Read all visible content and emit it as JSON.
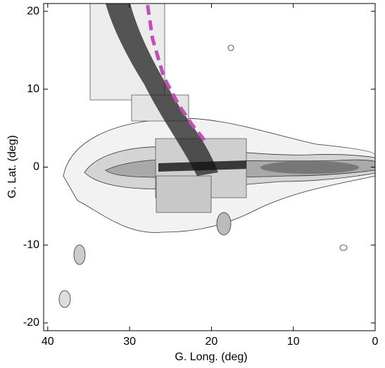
{
  "chart_data": {
    "type": "line",
    "x_label": "G. Long. (deg)",
    "y_label": "G. Lat. (deg)",
    "xlim": [
      40.5,
      0
    ],
    "ylim": [
      -21,
      21
    ],
    "xticks": [
      40,
      30,
      20,
      10,
      0
    ],
    "yticks": [
      -20,
      -10,
      0,
      10,
      20
    ],
    "linestyle": "dashed",
    "series": [
      {
        "color": "#c24fb5",
        "x": [
          27.8,
          27.2,
          25.8,
          24.0,
          22.4,
          20.8
        ],
        "values": [
          20.8,
          16.5,
          11.5,
          8.0,
          5.5,
          3.4
        ]
      }
    ]
  }
}
